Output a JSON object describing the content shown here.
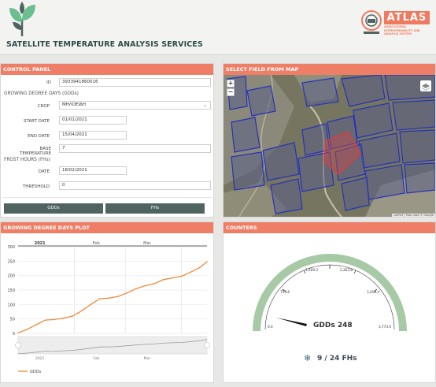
{
  "header": {
    "title": "SATELLITE TEMPERATURE ANALYSIS SERVICES",
    "brand": "ATLAS",
    "brand_sub": "AGRICULTURAL INTEROPERABILITY AND ANALYSIS SYSTEM"
  },
  "control_panel": {
    "title": "CONTROL PANEL",
    "id_label": "ID",
    "id_value": "3933941860016",
    "gdd_section": "GROWING DEGREE DAYS (GDDs)",
    "crop_label": "CROP",
    "crop_value": "ΜΗΛΟΕΙΔΗ",
    "start_label": "START DATE",
    "start_value": "01/01/2021",
    "end_label": "END DATE",
    "end_value": "15/04/2021",
    "base_label": "BASE TEMPERATURE",
    "base_value": "7",
    "fh_section": "FROST HOURS (FHs)",
    "date_label": "DATE",
    "date_value": "18/02/2021",
    "threshold_label": "THRESHOLD",
    "threshold_value": "0",
    "gdd_button": "GDDs",
    "fh_button": "FHs"
  },
  "map": {
    "title": "SELECT FIELD FROM MAP",
    "zoom_in": "+",
    "zoom_out": "−",
    "attribution": "Leaflet | Map data © Google"
  },
  "plot": {
    "title": "GROWING DEGREE DAYS PLOT",
    "legend": "GDDs",
    "year_label": "2021",
    "month_labels": [
      "Feb",
      "Mar"
    ],
    "nav_month_labels": [
      "2021",
      "Feb",
      "Mar"
    ]
  },
  "counters": {
    "title": "COUNTERS",
    "gauge_ticks": [
      "0.0",
      "754.6",
      "1,509.2",
      "2,263.8",
      "3,018.4",
      "3,773.0"
    ],
    "gdd_text": "GDDs 248",
    "fh_text": "9 / 24 FHs",
    "fh_icon": "snowflake-icon"
  },
  "chart_data": {
    "type": "line",
    "title": "",
    "xlabel": "",
    "ylabel": "",
    "ylim": [
      0,
      300
    ],
    "y_ticks": [
      0,
      50,
      100,
      150,
      200,
      250,
      300
    ],
    "x": [
      "2021-01-01",
      "2021-01-06",
      "2021-01-11",
      "2021-01-16",
      "2021-01-21",
      "2021-01-26",
      "2021-01-31",
      "2021-02-05",
      "2021-02-10",
      "2021-02-15",
      "2021-02-20",
      "2021-02-25",
      "2021-03-02",
      "2021-03-07",
      "2021-03-12",
      "2021-03-17",
      "2021-03-22",
      "2021-03-27",
      "2021-04-01",
      "2021-04-06",
      "2021-04-11",
      "2021-04-15"
    ],
    "series": [
      {
        "name": "GDDs",
        "color": "#f28a3c",
        "values": [
          2,
          14,
          30,
          46,
          48,
          53,
          60,
          78,
          100,
          120,
          122,
          128,
          140,
          155,
          165,
          172,
          186,
          192,
          198,
          212,
          228,
          248
        ]
      }
    ]
  }
}
